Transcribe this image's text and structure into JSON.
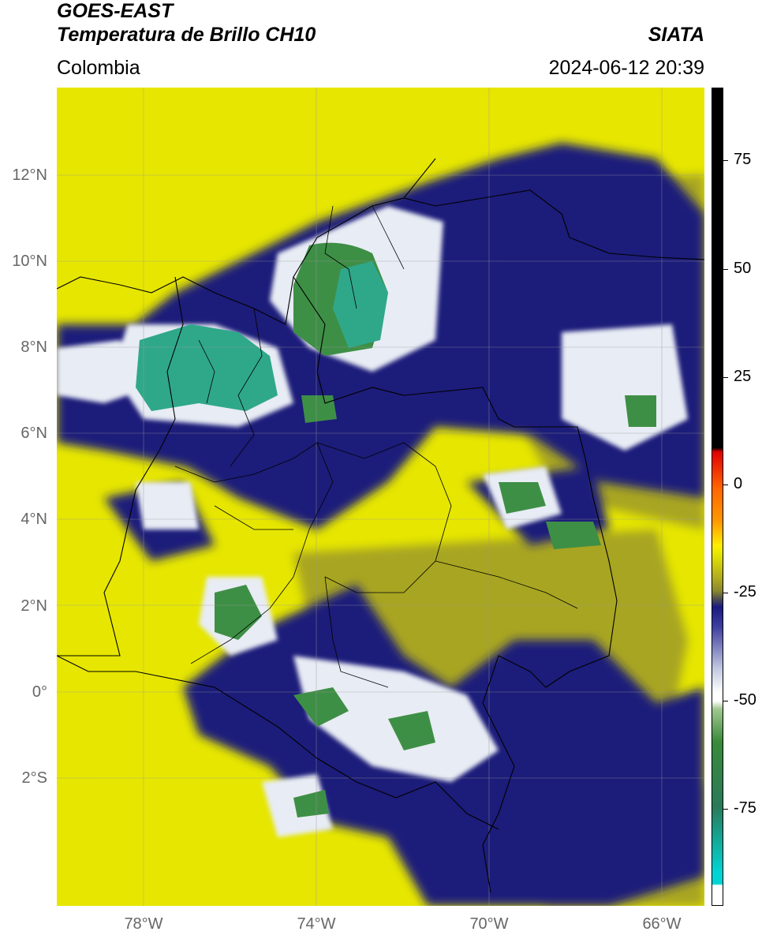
{
  "header": {
    "satellite": "GOES-EAST",
    "product": "Temperatura de Brillo CH10",
    "region": "Colombia",
    "agency": "SIATA",
    "timestamp": "2024-06-12 20:39"
  },
  "lat_labels": [
    "12°N",
    "10°N",
    "8°N",
    "6°N",
    "4°N",
    "2°N",
    "0°",
    "2°S"
  ],
  "lon_labels": [
    "78°W",
    "74°W",
    "70°W",
    "66°W"
  ],
  "colorbar": {
    "tick_labels": [
      "75",
      "50",
      "25",
      "0",
      "-25",
      "-50",
      "-75"
    ],
    "colors": {
      "black": "#000000",
      "red": "#e00000",
      "orange": "#ff9900",
      "yellow": "#ffee00",
      "olive": "#9a9a1a",
      "navy": "#1a1a80",
      "white": "#ffffff",
      "green": "#3a8a3a",
      "cyan": "#00d4d4"
    }
  },
  "colors": {
    "background_yellow": "#e6e600",
    "olive": "#a8a520",
    "navy": "#1c1f7a",
    "cloud_white": "#e8ecf4",
    "green": "#3e8f46",
    "teal": "#2fa88a"
  }
}
